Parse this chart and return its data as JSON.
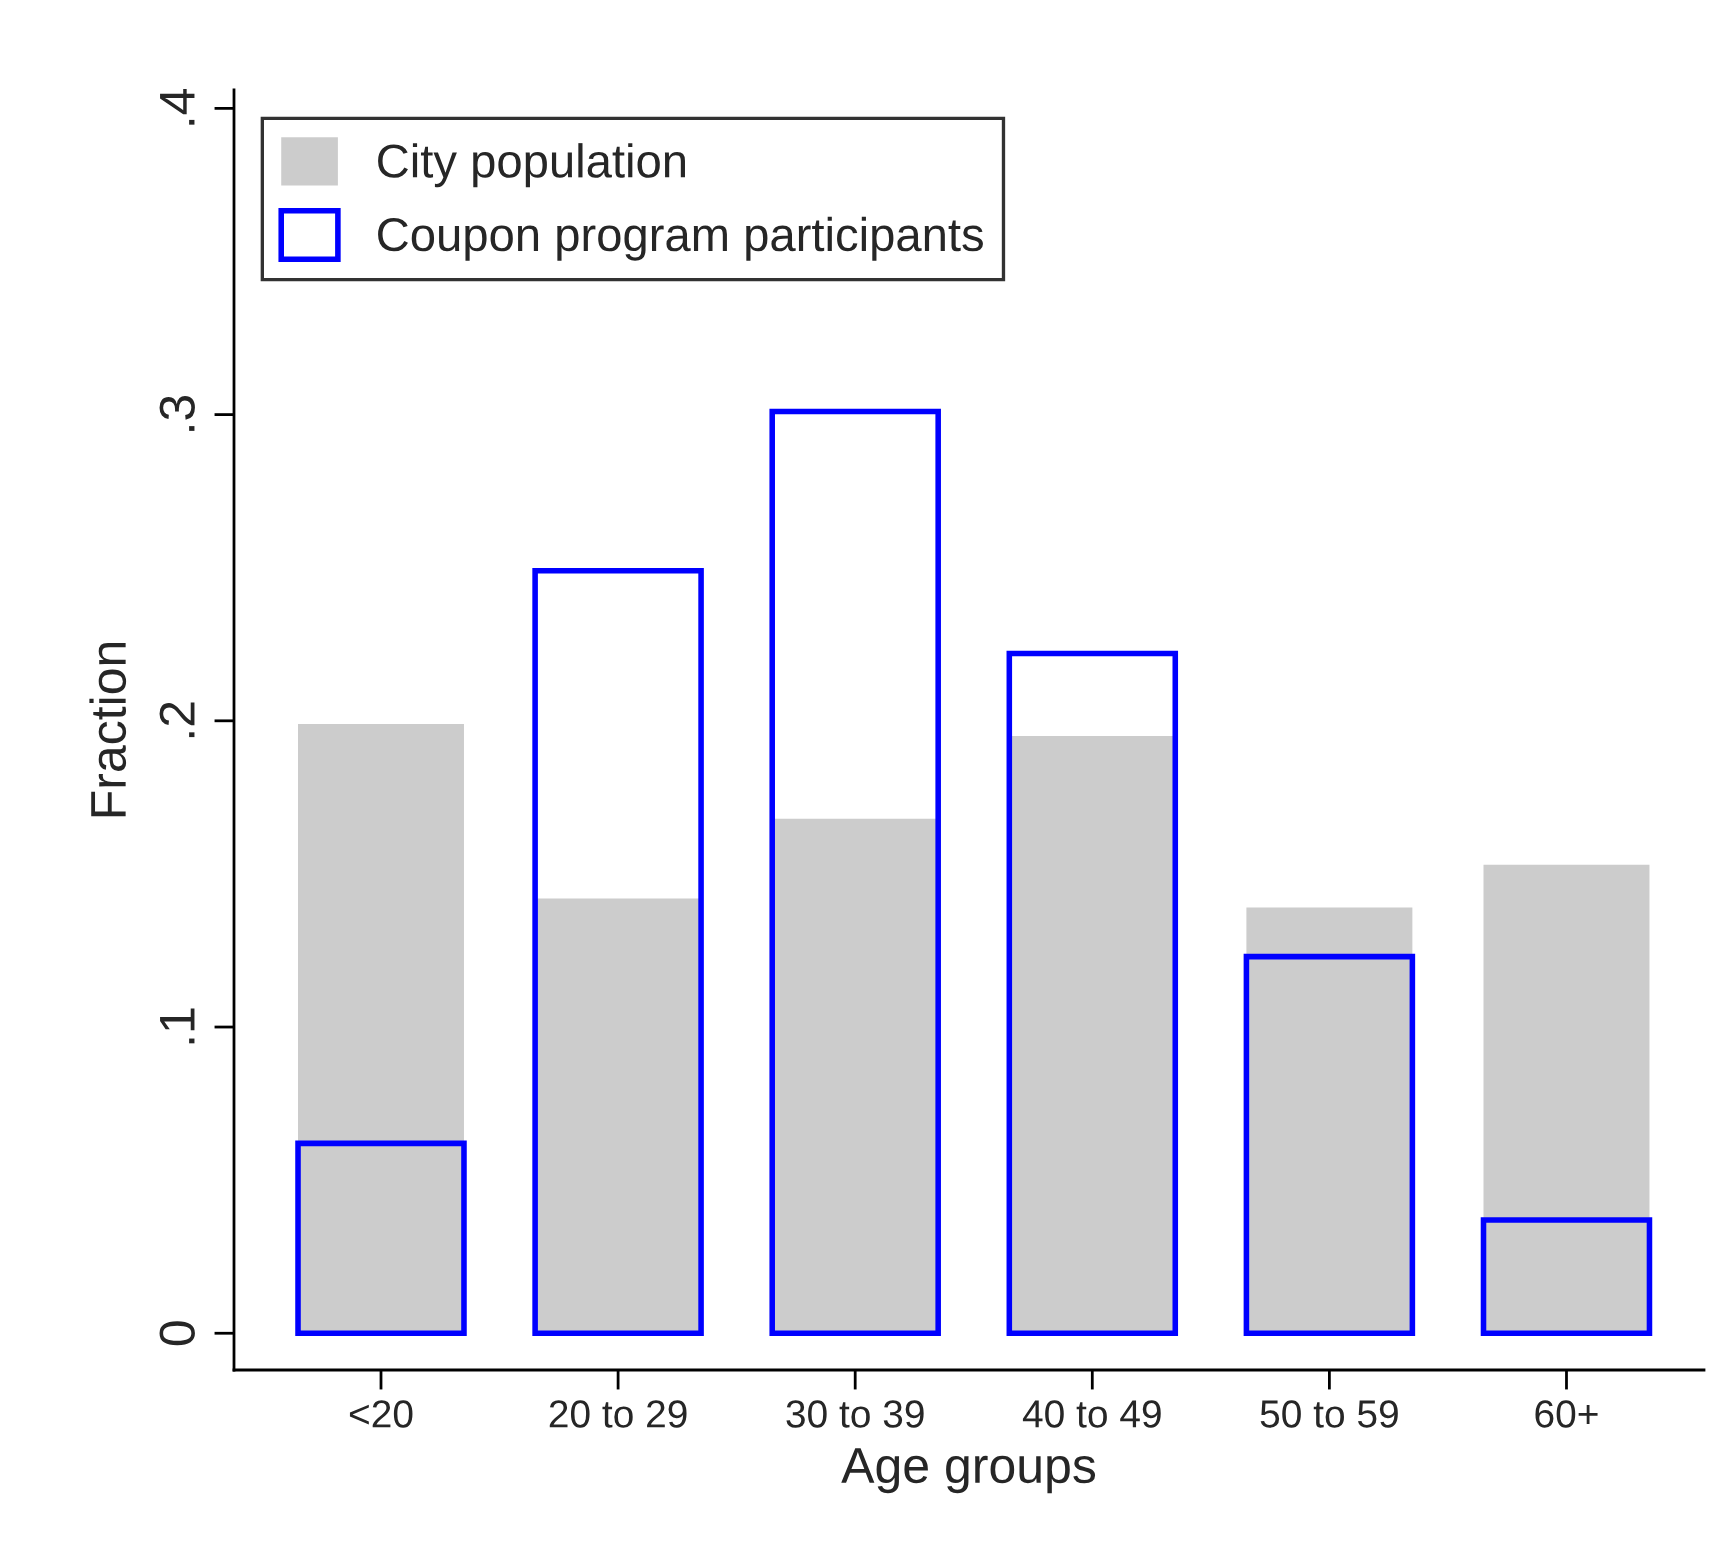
{
  "chart_data": {
    "type": "bar",
    "xlabel": "Age groups",
    "ylabel": "Fraction",
    "categories": [
      "<20",
      "20 to 29",
      "30 to 39",
      "40 to 49",
      "50 to 59",
      "60+"
    ],
    "series": [
      {
        "name": "City population",
        "color": "#cccccc",
        "values": [
          0.199,
          0.142,
          0.168,
          0.195,
          0.139,
          0.153
        ]
      },
      {
        "name": "Coupon program participants",
        "color": "#0000ff",
        "values": [
          0.062,
          0.249,
          0.301,
          0.222,
          0.123,
          0.037
        ]
      }
    ],
    "ylim": [
      -0.012,
      0.406
    ],
    "yticks": [
      {
        "value": 0,
        "label": "0"
      },
      {
        "value": 0.1,
        "label": ".1"
      },
      {
        "value": 0.2,
        "label": ".2"
      },
      {
        "value": 0.3,
        "label": ".3"
      },
      {
        "value": 0.4,
        "label": ".4"
      }
    ],
    "grid": false,
    "legend": "top left"
  }
}
